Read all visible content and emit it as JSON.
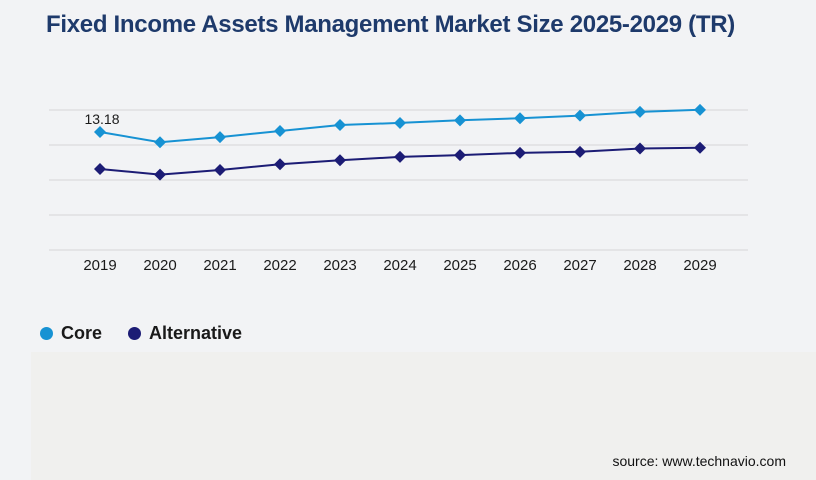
{
  "header": {
    "title": "Fixed Income Assets Management Market Size 2025-2029 (TR)"
  },
  "chart_data": {
    "type": "line",
    "title": "Fixed Income Assets Management Market Size 2025-2029 (TR)",
    "x": [
      2019,
      2020,
      2021,
      2022,
      2023,
      2024,
      2025,
      2026,
      2027,
      2028,
      2029
    ],
    "series": [
      {
        "name": "Core",
        "color": "#1792d3",
        "marker": "diamond",
        "values": [
          13.18,
          12.6,
          12.89,
          13.24,
          13.58,
          13.7,
          13.85,
          13.97,
          14.12,
          14.33,
          14.45
        ]
      },
      {
        "name": "Alternative",
        "color": "#1c1c75",
        "marker": "diamond",
        "values": [
          11.07,
          10.75,
          11.01,
          11.34,
          11.57,
          11.76,
          11.86,
          11.99,
          12.05,
          12.24,
          12.28
        ]
      }
    ],
    "point_label": {
      "series": "Core",
      "x": 2019,
      "text": "13.18"
    },
    "xlabel": "",
    "ylabel": "",
    "ylim": [
      6.44,
      14.44
    ],
    "gridline_count": 5,
    "grid": "horizontal-only",
    "y_axis_labels_visible": false,
    "legend_position": "bottom-left"
  },
  "legend": {
    "items": [
      {
        "label": "Core",
        "color": "#1792d3"
      },
      {
        "label": "Alternative",
        "color": "#1c1c75"
      }
    ]
  },
  "footer": {
    "source": "source: www.technavio.com"
  },
  "colors": {
    "title": "#1e3a6b",
    "gridline": "#d6d6d6",
    "axis_text": "#1a1a1a",
    "page_background": "#f2f3f5",
    "panel_background": "#f0f0ee",
    "core_series": "#1792d3",
    "alternative_series": "#1c1c75"
  }
}
